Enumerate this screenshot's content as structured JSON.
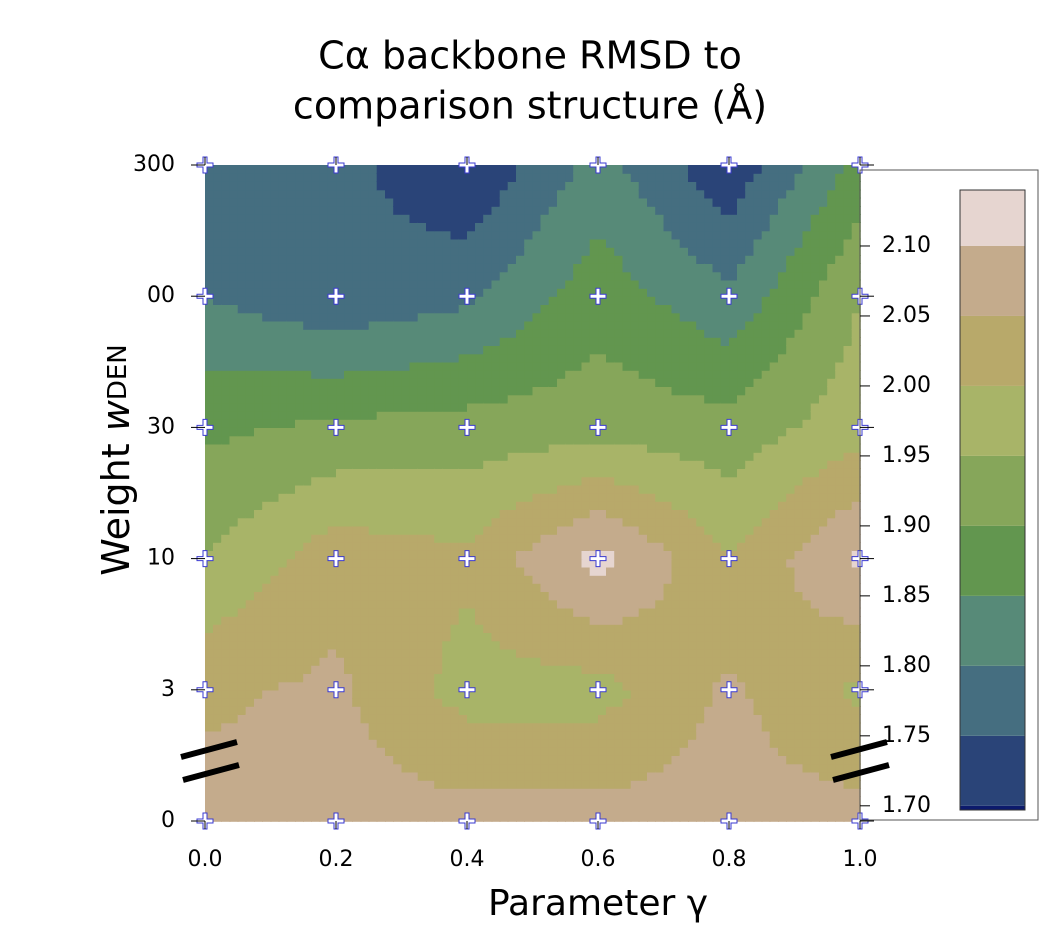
{
  "chart_data": {
    "type": "contour",
    "title": [
      "Cα backbone RMSD to",
      "comparison structure (Å)"
    ],
    "xlabel": "Parameter γ",
    "ylabel": "Weight",
    "ylabel_var": "w",
    "ylabel_sub": "DEN",
    "x": [
      0,
      0.2,
      0.4,
      0.6,
      0.8,
      1
    ],
    "xlim": [
      0,
      1
    ],
    "xticks": [
      {
        "value": 0,
        "label": "0.0"
      },
      0.2,
      0.4,
      0.6,
      0.8,
      {
        "value": 1,
        "label": "1.0"
      }
    ],
    "y_categories": [
      "0",
      "3",
      "10",
      "30",
      "00",
      "300"
    ],
    "z": [
      [
        2.07,
        2.07,
        2.07,
        2.07,
        2.07,
        2.07
      ],
      [
        2.04,
        2.06,
        1.98,
        1.98,
        2.06,
        1.99
      ],
      [
        1.95,
        2.03,
        2.01,
        2.12,
        2.0,
        2.11
      ],
      [
        1.89,
        1.91,
        1.92,
        1.93,
        1.92,
        1.98
      ],
      [
        1.8,
        1.76,
        1.79,
        1.88,
        1.81,
        1.95
      ],
      [
        1.78,
        1.77,
        1.7,
        1.82,
        1.71,
        1.87
      ]
    ],
    "zlim": [
      1.697,
      2.14
    ],
    "levels": [
      1.7,
      1.75,
      1.8,
      1.85,
      1.9,
      1.95,
      2.0,
      2.05,
      2.1
    ],
    "colors": [
      "#0c1a6c",
      "#2a4478",
      "#456e80",
      "#578a78",
      "#62964f",
      "#86a65a",
      "#a8b468",
      "#b8a96a",
      "#c4ab8c",
      "#e6d5d0"
    ],
    "zticks": [
      {
        "value": 1.7,
        "label": "1.70"
      },
      1.75,
      {
        "value": 1.8,
        "label": "1.80"
      },
      1.85,
      {
        "value": 1.9,
        "label": "1.90"
      },
      1.95,
      {
        "value": 2.0,
        "label": "2.00"
      },
      2.05,
      {
        "value": 2.1,
        "label": "2.10"
      }
    ]
  }
}
